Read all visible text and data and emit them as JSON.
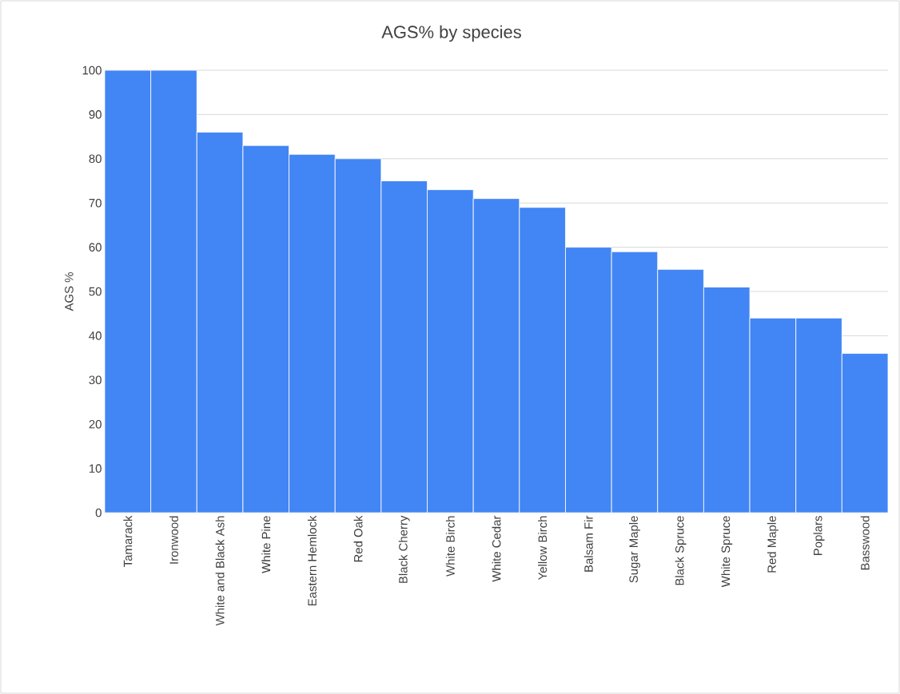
{
  "chart_data": {
    "type": "bar",
    "title": "AGS% by species",
    "ylabel": "AGS %",
    "categories": [
      "Tamarack",
      "Ironwood",
      "White and Black Ash",
      "White Pine",
      "Eastern Hemlock",
      "Red Oak",
      "Black Cherry",
      "White Birch",
      "White Cedar",
      "Yellow Birch",
      "Balsam Fir",
      "Sugar Maple",
      "Black Spruce",
      "White Spruce",
      "Red Maple",
      "Poplars",
      "Basswood"
    ],
    "values": [
      100,
      100,
      86,
      83,
      81,
      80,
      75,
      73,
      71,
      69,
      60,
      59,
      55,
      51,
      44,
      44,
      36
    ],
    "color": "#4285f4",
    "ylim": [
      0,
      100
    ],
    "yticks": [
      0,
      10,
      20,
      30,
      40,
      50,
      60,
      70,
      80,
      90,
      100
    ],
    "grid": "y"
  }
}
